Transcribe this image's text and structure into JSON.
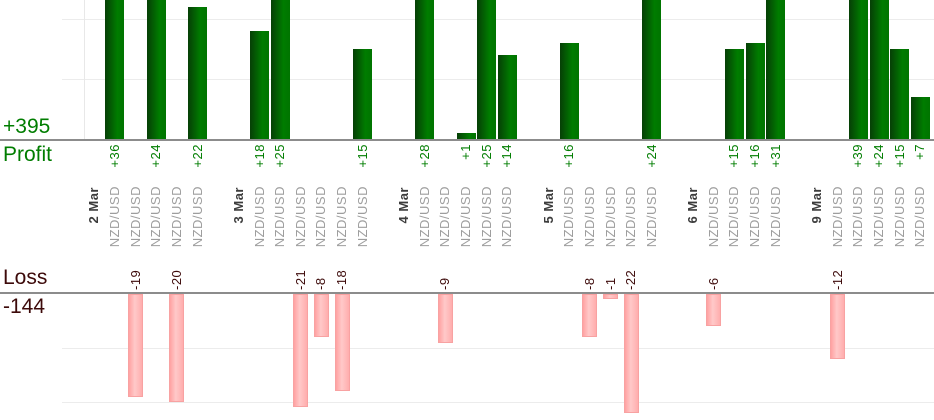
{
  "summary": {
    "profit_total": "+395",
    "profit_label": "Profit",
    "loss_label": "Loss",
    "loss_total": "-144"
  },
  "colors": {
    "profit_text": "#007d00",
    "loss_text": "#3d0a0a",
    "bar_green_dark": "#063f06",
    "bar_green_light": "#007c00",
    "bar_pink_light": "#ffc9c9",
    "bar_pink_dark": "#ffa2a2",
    "date_label": "#3c3c3c",
    "symbol_label": "#9e9e9e",
    "axis_line": "#8c8c8c",
    "gridline": "#ececec"
  },
  "chart_data": {
    "type": "bar",
    "orientation": "dual-axis profit above / loss below",
    "grid_step": 10,
    "profit_visible_range": [
      0,
      23
    ],
    "loss_visible_range": [
      0,
      -23
    ],
    "totals": {
      "profit": 395,
      "loss": -144
    },
    "groups": [
      {
        "date": "2 Mar",
        "trades": [
          {
            "symbol": "NZD/USD",
            "value": 36,
            "label": "+36"
          },
          {
            "symbol": "NZD/USD",
            "value": -19,
            "label": "-19"
          },
          {
            "symbol": "NZD/USD",
            "value": 24,
            "label": "+24"
          },
          {
            "symbol": "NZD/USD",
            "value": -20,
            "label": "-20"
          },
          {
            "symbol": "NZD/USD",
            "value": 22,
            "label": "+22"
          }
        ]
      },
      {
        "date": "3 Mar",
        "trades": [
          {
            "symbol": "NZD/USD",
            "value": 18,
            "label": "+18"
          },
          {
            "symbol": "NZD/USD",
            "value": 25,
            "label": "+25"
          },
          {
            "symbol": "NZD/USD",
            "value": -21,
            "label": "-21"
          },
          {
            "symbol": "NZD/USD",
            "value": -8,
            "label": "-8"
          },
          {
            "symbol": "NZD/USD",
            "value": -18,
            "label": "-18"
          },
          {
            "symbol": "NZD/USD",
            "value": 15,
            "label": "+15"
          }
        ]
      },
      {
        "date": "4 Mar",
        "trades": [
          {
            "symbol": "NZD/USD",
            "value": 28,
            "label": "+28"
          },
          {
            "symbol": "NZD/USD",
            "value": -9,
            "label": "-9"
          },
          {
            "symbol": "NZD/USD",
            "value": 1,
            "label": "+1"
          },
          {
            "symbol": "NZD/USD",
            "value": 25,
            "label": "+25"
          },
          {
            "symbol": "NZD/USD",
            "value": 14,
            "label": "+14"
          }
        ]
      },
      {
        "date": "5 Mar",
        "trades": [
          {
            "symbol": "NZD/USD",
            "value": 16,
            "label": "+16"
          },
          {
            "symbol": "NZD/USD",
            "value": -8,
            "label": "-8"
          },
          {
            "symbol": "NZD/USD",
            "value": -1,
            "label": "-1"
          },
          {
            "symbol": "NZD/USD",
            "value": -22,
            "label": "-22"
          },
          {
            "symbol": "NZD/USD",
            "value": 24,
            "label": "+24"
          }
        ]
      },
      {
        "date": "6 Mar",
        "trades": [
          {
            "symbol": "NZD/USD",
            "value": -6,
            "label": "-6"
          },
          {
            "symbol": "NZD/USD",
            "value": 15,
            "label": "+15"
          },
          {
            "symbol": "NZD/USD",
            "value": 16,
            "label": "+16"
          },
          {
            "symbol": "NZD/USD",
            "value": 31,
            "label": "+31"
          }
        ]
      },
      {
        "date": "9 Mar",
        "trades": [
          {
            "symbol": "NZD/USD",
            "value": -12,
            "label": "-12"
          },
          {
            "symbol": "NZD/USD",
            "value": 39,
            "label": "+39"
          },
          {
            "symbol": "NZD/USD",
            "value": 24,
            "label": "+24"
          },
          {
            "symbol": "NZD/USD",
            "value": 15,
            "label": "+15"
          },
          {
            "symbol": "NZD/USD",
            "value": 7,
            "label": "+7"
          }
        ]
      }
    ]
  }
}
